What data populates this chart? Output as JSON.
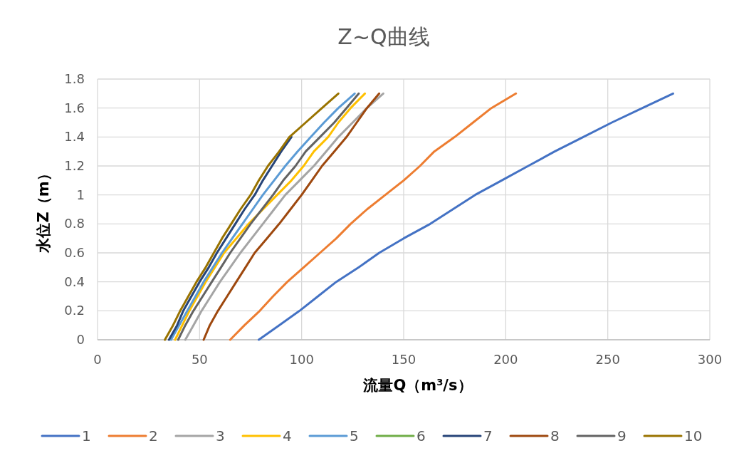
{
  "chart_data": {
    "type": "line",
    "title": "Z~Q曲线",
    "xlabel": "流量Q（m³/s）",
    "ylabel": "水位Z（m）",
    "xlim": [
      0,
      300
    ],
    "xticks": [
      0,
      50,
      100,
      150,
      200,
      250,
      300
    ],
    "ylim": [
      0,
      1.8
    ],
    "yticks": [
      {
        "value": 0,
        "label": "0"
      },
      {
        "value": 0.2,
        "label": "0.2"
      },
      {
        "value": 0.4,
        "label": "0.4"
      },
      {
        "value": 0.6,
        "label": "0.6"
      },
      {
        "value": 0.8,
        "label": "0.8"
      },
      {
        "value": 1,
        "label": "1"
      },
      {
        "value": 1.2,
        "label": "1.2"
      },
      {
        "value": 1.4,
        "label": "1.4"
      },
      {
        "value": 1.6,
        "label": "1.6"
      },
      {
        "value": 1.8,
        "label": "1.8"
      }
    ],
    "grid": true,
    "legend": "bottom",
    "marker": "none",
    "line_style": "solid",
    "series": [
      {
        "name": "1",
        "color": "#4472c4",
        "x": [
          79,
          89,
          99,
          108,
          117,
          128,
          138,
          150,
          163,
          174,
          185,
          198,
          211,
          224,
          238,
          252,
          267,
          282
        ],
        "values": [
          0,
          0.1,
          0.2,
          0.3,
          0.4,
          0.5,
          0.6,
          0.7,
          0.8,
          0.9,
          1,
          1.1,
          1.2,
          1.3,
          1.4,
          1.5,
          1.6,
          1.7
        ]
      },
      {
        "name": "2",
        "color": "#ed7d31",
        "x": [
          65,
          72,
          79.5,
          86,
          93,
          101,
          109,
          117,
          124,
          132,
          141,
          150,
          158,
          165,
          175,
          184,
          193,
          205
        ],
        "values": [
          0,
          0.1,
          0.2,
          0.3,
          0.4,
          0.5,
          0.6,
          0.7,
          0.8,
          0.9,
          1,
          1.1,
          1.2,
          1.3,
          1.4,
          1.5,
          1.6,
          1.7
        ]
      },
      {
        "name": "3",
        "color": "#a5a5a5",
        "x": [
          43,
          47,
          51,
          55.5,
          60,
          65,
          70,
          75.5,
          81,
          86.5,
          92,
          99,
          106,
          112,
          118,
          125,
          132,
          140
        ],
        "values": [
          0,
          0.1,
          0.2,
          0.3,
          0.4,
          0.5,
          0.6,
          0.7,
          0.8,
          0.9,
          1,
          1.1,
          1.2,
          1.3,
          1.4,
          1.5,
          1.6,
          1.7
        ]
      },
      {
        "name": "4",
        "color": "#ffc000",
        "x": [
          38,
          41.5,
          45,
          49,
          53,
          57.5,
          62,
          68,
          74,
          81,
          88,
          95,
          101,
          106,
          113,
          118,
          124,
          131
        ],
        "values": [
          0,
          0.1,
          0.2,
          0.3,
          0.4,
          0.5,
          0.6,
          0.7,
          0.8,
          0.9,
          1,
          1.1,
          1.2,
          1.3,
          1.4,
          1.5,
          1.6,
          1.7
        ]
      },
      {
        "name": "5",
        "color": "#5b9bd5",
        "x": [
          36,
          40,
          44,
          48,
          52,
          56.5,
          61,
          66,
          71,
          76,
          81,
          86.5,
          92,
          98,
          104.5,
          111,
          118,
          126
        ],
        "values": [
          0,
          0.1,
          0.2,
          0.3,
          0.4,
          0.5,
          0.6,
          0.7,
          0.8,
          0.9,
          1,
          1.1,
          1.2,
          1.3,
          1.4,
          1.5,
          1.6,
          1.7
        ]
      },
      {
        "name": "6",
        "color": "#70ad47",
        "x": [
          null,
          null,
          null,
          null,
          null,
          null,
          null,
          null,
          null,
          null,
          null,
          null,
          null,
          null,
          null,
          null,
          null,
          null
        ],
        "values": [
          null,
          null,
          null,
          null,
          null,
          null,
          null,
          null,
          null,
          null,
          null,
          null,
          null,
          null,
          null,
          null,
          null,
          null
        ]
      },
      {
        "name": "7",
        "color": "#264478",
        "x": [
          35,
          39,
          42,
          46,
          50,
          54.5,
          58.5,
          63,
          67.5,
          72,
          77,
          81,
          85.5,
          90,
          95
        ],
        "values": [
          0,
          0.1,
          0.2,
          0.3,
          0.4,
          0.5,
          0.6,
          0.7,
          0.8,
          0.9,
          1,
          1.1,
          1.2,
          1.3,
          1.4
        ]
      },
      {
        "name": "8",
        "color": "#9e480e",
        "x": [
          52,
          55,
          59,
          63.5,
          68,
          72.5,
          77,
          83,
          89,
          94.5,
          100,
          105,
          110,
          116,
          122,
          127,
          132,
          138
        ],
        "values": [
          0,
          0.1,
          0.2,
          0.3,
          0.4,
          0.5,
          0.6,
          0.7,
          0.8,
          0.9,
          1,
          1.1,
          1.2,
          1.3,
          1.4,
          1.5,
          1.6,
          1.7
        ]
      },
      {
        "name": "9",
        "color": "#636363",
        "x": [
          39.5,
          43,
          47,
          51.5,
          56,
          60.5,
          65,
          70,
          75,
          80.5,
          86,
          91,
          97,
          102,
          109,
          116,
          122,
          128
        ],
        "values": [
          0,
          0.1,
          0.2,
          0.3,
          0.4,
          0.5,
          0.6,
          0.7,
          0.8,
          0.9,
          1,
          1.1,
          1.2,
          1.3,
          1.4,
          1.5,
          1.6,
          1.7
        ]
      },
      {
        "name": "10",
        "color": "#997300",
        "x": [
          33,
          37,
          40.5,
          44.5,
          48.5,
          53,
          57,
          61,
          65.5,
          70,
          75,
          79,
          83.5,
          89,
          94,
          102,
          110,
          118
        ],
        "values": [
          0,
          0.1,
          0.2,
          0.3,
          0.4,
          0.5,
          0.6,
          0.7,
          0.8,
          0.9,
          1,
          1.1,
          1.2,
          1.3,
          1.4,
          1.5,
          1.6,
          1.7
        ]
      }
    ]
  }
}
